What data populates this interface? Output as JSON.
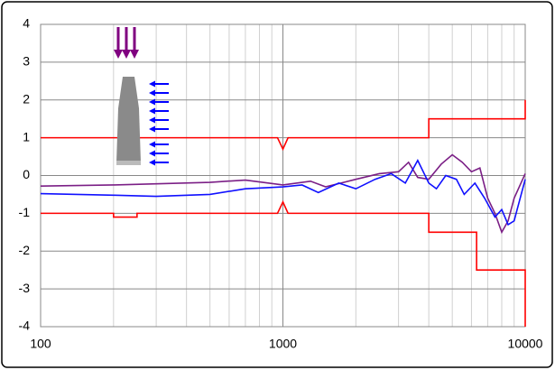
{
  "chart_data": {
    "type": "line",
    "xscale": "log",
    "xlim": [
      100,
      10000
    ],
    "xticks": [
      100,
      1000,
      10000
    ],
    "x_minor_ticks": [
      200,
      300,
      400,
      500,
      600,
      700,
      800,
      900,
      2000,
      3000,
      4000,
      5000,
      6000,
      7000,
      8000,
      9000
    ],
    "ylim": [
      -4,
      4
    ],
    "yticks": [
      -4,
      -3,
      -2,
      -1,
      0,
      1,
      2,
      3,
      4
    ],
    "grid": true,
    "series": [
      {
        "color": "#ff0000",
        "x": [
          100,
          950,
          1000,
          1050,
          4000,
          4000,
          10000,
          10000
        ],
        "values": [
          1,
          1,
          0.7,
          1,
          1,
          1.5,
          1.5,
          2
        ]
      },
      {
        "color": "#ff0000",
        "x": [
          100,
          200,
          200,
          250,
          250,
          950,
          1000,
          1050,
          4000,
          4000,
          6300,
          6300,
          10000,
          10000
        ],
        "values": [
          -1,
          -1,
          -1.1,
          -1.1,
          -1,
          -1,
          -0.7,
          -1,
          -1,
          -1.5,
          -1.5,
          -2.5,
          -2.5,
          -4
        ]
      },
      {
        "color": "#7b1f86",
        "x": [
          100,
          200,
          300,
          500,
          700,
          1000,
          1300,
          1500,
          2000,
          2500,
          3000,
          3300,
          3600,
          4000,
          4500,
          5000,
          5500,
          6000,
          6500,
          7000,
          7500,
          8000,
          8500,
          9000,
          10000
        ],
        "values": [
          -0.28,
          -0.25,
          -0.22,
          -0.18,
          -0.12,
          -0.25,
          -0.15,
          -0.3,
          -0.1,
          0.05,
          0.1,
          0.35,
          -0.05,
          -0.1,
          0.3,
          0.55,
          0.35,
          0.1,
          0.2,
          -0.6,
          -1.0,
          -1.5,
          -1.2,
          -0.6,
          0.05
        ]
      },
      {
        "color": "#1010ff",
        "x": [
          100,
          200,
          300,
          500,
          700,
          1000,
          1200,
          1400,
          1700,
          2000,
          2400,
          2800,
          3200,
          3600,
          4000,
          4300,
          4700,
          5200,
          5600,
          6200,
          6800,
          7500,
          8000,
          8500,
          9000,
          10000
        ],
        "values": [
          -0.48,
          -0.52,
          -0.55,
          -0.5,
          -0.35,
          -0.3,
          -0.25,
          -0.45,
          -0.2,
          -0.35,
          -0.1,
          0.05,
          -0.2,
          0.4,
          -0.2,
          -0.35,
          0.0,
          -0.1,
          -0.5,
          -0.2,
          -0.6,
          -1.1,
          -0.9,
          -1.3,
          -1.2,
          -0.1
        ]
      }
    ]
  }
}
